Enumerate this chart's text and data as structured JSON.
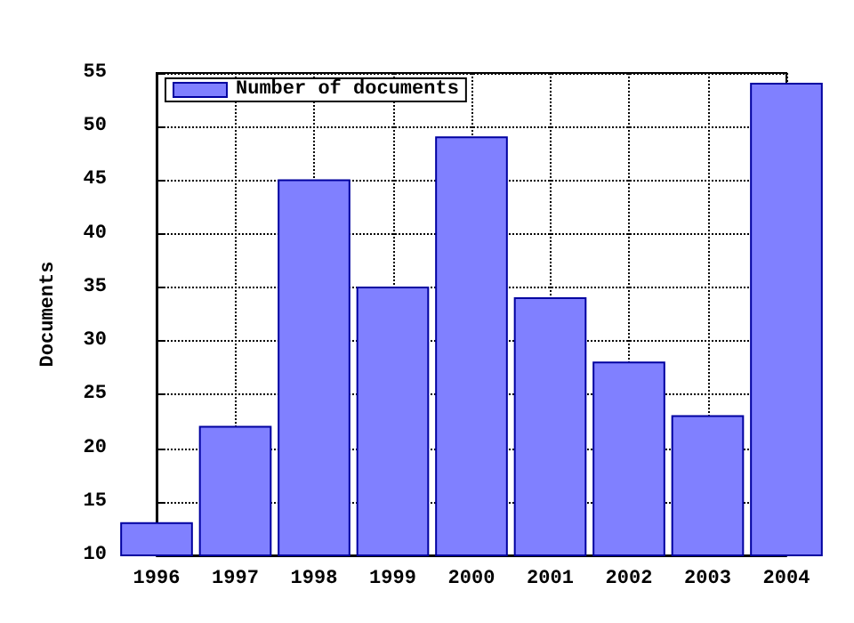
{
  "chart_data": {
    "type": "bar",
    "ylabel": "Documents",
    "x": [
      1996,
      1997,
      1998,
      1999,
      2000,
      2001,
      2002,
      2003,
      2004
    ],
    "series": [
      {
        "name": "Number of documents",
        "color": "#8080ff",
        "values": [
          13,
          22,
          45,
          35,
          49,
          34,
          28,
          23,
          54
        ]
      }
    ],
    "xlim": [
      1996,
      2004
    ],
    "xticks": [
      1996,
      1997,
      1998,
      1999,
      2000,
      2001,
      2002,
      2003,
      2004
    ],
    "ylim": [
      10,
      55
    ],
    "yticks": [
      10,
      15,
      20,
      25,
      30,
      35,
      40,
      45,
      50,
      55
    ],
    "grid": true,
    "legend": "top left",
    "line_style": "dotted"
  }
}
